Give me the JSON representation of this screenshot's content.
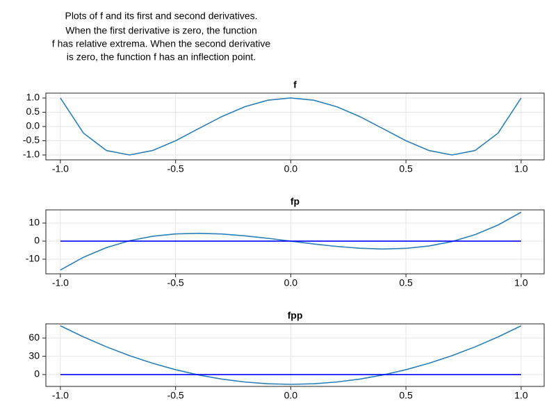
{
  "caption": [
    "Plots of f and its first and second derivatives.",
    "When the first derivative is zero, the function",
    "f has relative extrema. When the second derivative",
    "is zero, the function f has an inflection point."
  ],
  "chart_data": [
    {
      "type": "line",
      "title": "f",
      "x": [
        -1,
        -0.9,
        -0.8,
        -0.7,
        -0.6,
        -0.5,
        -0.4,
        -0.3,
        -0.2,
        -0.1,
        0,
        0.1,
        0.2,
        0.3,
        0.4,
        0.5,
        0.6,
        0.7,
        0.8,
        0.9,
        1
      ],
      "series": [
        {
          "color": "#2a7fb8",
          "values": [
            1,
            -0.2312,
            -0.8432,
            -0.9992,
            -0.8432,
            -0.5,
            -0.0752,
            0.3448,
            0.6928,
            0.9208,
            1,
            0.9208,
            0.6928,
            0.3448,
            -0.0752,
            -0.5,
            -0.8432,
            -0.9992,
            -0.8432,
            -0.2312,
            1
          ]
        }
      ],
      "xlim": [
        -1.063,
        1.1
      ],
      "ylim": [
        -1.17,
        1.17
      ],
      "xticks": [
        {
          "value": -1,
          "label": "-1.0"
        },
        {
          "value": -0.5,
          "label": "-0.5"
        },
        {
          "value": 0,
          "label": "0.0"
        },
        {
          "value": 0.5,
          "label": "0.5"
        },
        {
          "value": 1,
          "label": "1.0"
        }
      ],
      "yticks": [
        {
          "value": 1,
          "label": "1.0"
        },
        {
          "value": 0.5,
          "label": "0.5"
        },
        {
          "value": 0,
          "label": "0.0"
        },
        {
          "value": -0.5,
          "label": "-0.5"
        },
        {
          "value": -1,
          "label": "-1.0"
        }
      ],
      "grid": true
    },
    {
      "type": "line",
      "title": "fp",
      "x": [
        -1,
        -0.9,
        -0.8,
        -0.7,
        -0.6,
        -0.5,
        -0.4,
        -0.3,
        -0.2,
        -0.1,
        0,
        0.1,
        0.2,
        0.3,
        0.4,
        0.5,
        0.6,
        0.7,
        0.8,
        0.9,
        1
      ],
      "series": [
        {
          "color": "#2a7fb8",
          "values": [
            -16,
            -8.928,
            -3.584,
            0.224,
            2.688,
            4,
            4.352,
            3.936,
            2.944,
            1.568,
            0,
            -1.568,
            -2.944,
            -3.936,
            -4.352,
            -4,
            -2.688,
            -0.224,
            3.584,
            8.928,
            16
          ]
        },
        {
          "color": "#0000ff",
          "x": [
            -1,
            1
          ],
          "values": [
            0,
            0
          ]
        }
      ],
      "xlim": [
        -1.063,
        1.1
      ],
      "ylim": [
        -18.1,
        17.3
      ],
      "xticks": [
        {
          "value": -1,
          "label": "-1.0"
        },
        {
          "value": -0.5,
          "label": "-0.5"
        },
        {
          "value": 0,
          "label": "0.0"
        },
        {
          "value": 0.5,
          "label": "0.5"
        },
        {
          "value": 1,
          "label": "1.0"
        }
      ],
      "yticks": [
        10,
        0,
        -10
      ],
      "grid": true
    },
    {
      "type": "line",
      "title": "fpp",
      "x": [
        -1,
        -0.9,
        -0.8,
        -0.7,
        -0.6,
        -0.5,
        -0.4,
        -0.3,
        -0.2,
        -0.1,
        0,
        0.1,
        0.2,
        0.3,
        0.4,
        0.5,
        0.6,
        0.7,
        0.8,
        0.9,
        1
      ],
      "series": [
        {
          "color": "#2a7fb8",
          "values": [
            80,
            61.76,
            45.44,
            31.04,
            18.56,
            8,
            -0.64,
            -7.36,
            -12.16,
            -15.04,
            -16,
            -15.04,
            -12.16,
            -7.36,
            -0.64,
            8,
            18.56,
            31.04,
            45.44,
            61.76,
            80
          ]
        },
        {
          "color": "#0000ff",
          "x": [
            -1,
            1
          ],
          "values": [
            0,
            0
          ]
        }
      ],
      "xlim": [
        -1.063,
        1.1
      ],
      "ylim": [
        -19.4,
        83.1
      ],
      "xticks": [
        {
          "value": -1,
          "label": "-1.0"
        },
        {
          "value": -0.5,
          "label": "-0.5"
        },
        {
          "value": 0,
          "label": "0.0"
        },
        {
          "value": 0.5,
          "label": "0.5"
        },
        {
          "value": 1,
          "label": "1.0"
        }
      ],
      "yticks": [
        60,
        30,
        0
      ],
      "grid": true
    }
  ]
}
